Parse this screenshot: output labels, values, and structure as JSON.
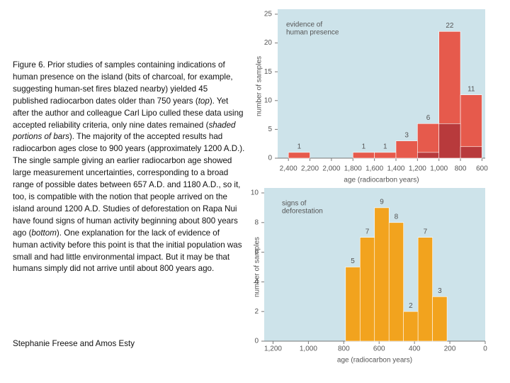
{
  "caption": [
    "Figure 6. Prior studies of samples containing indications of human presence on the island (bits of charcoal, for example, suggesting human-set fires blazed nearby) yielded 45 published radiocarbon dates older than 750 years (",
    "top",
    "). Yet after the author and colleague Carl Lipo culled these data using accepted reliability criteria, only nine dates remained (",
    "shaded portions of bars",
    "). The majority of the accepted results had radiocarbon ages close to 900 years (approximately 1200 A.D.). The single sample giving an earlier radiocarbon age showed large measurement uncertainties, corresponding to a broad range of possible dates between 657 A.D. and 1180 A.D., so it, too, is compatible with the notion that people arrived on the island around 1200 A.D. Studies of deforestation on Rapa Nui have found signs of human activity beginning about 800 years ago (",
    "bottom",
    "). One explanation for the lack of evidence of human activity before this point is that the initial population was small and had little environmental impact. But it may be that humans simply did not arrive until about 800 years ago."
  ],
  "caption_italic": [
    false,
    true,
    false,
    true,
    false,
    true,
    false
  ],
  "credit": "Stephanie Freese and Amos Esty",
  "chart_data": [
    {
      "type": "histogram",
      "annotation": [
        "evidence of",
        "human presence"
      ],
      "x_label": "age (radiocarbon years)",
      "y_label": "number of samples",
      "bins": [
        2400,
        2200,
        2000,
        1800,
        1600,
        1400,
        1200,
        1000,
        800,
        600
      ],
      "series": [
        {
          "color": "#e65a4c",
          "labels": true,
          "values": [
            1,
            0,
            0,
            1,
            1,
            3,
            6,
            22,
            11
          ]
        },
        {
          "color": "#b83a3c",
          "labels": false,
          "values": [
            0,
            0,
            0,
            0,
            0,
            0,
            1,
            6,
            2
          ]
        }
      ],
      "xlim": [
        2500,
        570
      ],
      "ylim": [
        0,
        25
      ],
      "xticks": [
        {
          "value": 2400,
          "label": "2,400"
        },
        {
          "value": 2200,
          "label": "2,200"
        },
        {
          "value": 2000,
          "label": "2,000"
        },
        {
          "value": 1800,
          "label": "1,800"
        },
        {
          "value": 1600,
          "label": "1,600"
        },
        {
          "value": 1400,
          "label": "1,400"
        },
        {
          "value": 1200,
          "label": "1,200"
        },
        {
          "value": 1000,
          "label": "1,000"
        },
        800,
        600
      ],
      "yticks": [
        0,
        5,
        10,
        15,
        20,
        25
      ],
      "background": "#cde3ea"
    },
    {
      "type": "histogram",
      "annotation": [
        "signs of",
        "deforestation"
      ],
      "x_label": "age (radiocarbon years)",
      "y_label": "number of samples",
      "bins": [
        790,
        708,
        626,
        544,
        462,
        380,
        298,
        216
      ],
      "series": [
        {
          "color": "#f2a31e",
          "labels": true,
          "values": [
            5,
            7,
            9,
            8,
            2,
            7,
            3
          ]
        }
      ],
      "xlim": [
        1250,
        0
      ],
      "ylim": [
        0,
        10
      ],
      "xticks": [
        {
          "value": 1200,
          "label": "1,200"
        },
        {
          "value": 1000,
          "label": "1,000"
        },
        800,
        600,
        400,
        200,
        0
      ],
      "yticks": [
        0,
        2,
        4,
        6,
        8,
        10
      ],
      "background": "#cde3ea"
    }
  ]
}
